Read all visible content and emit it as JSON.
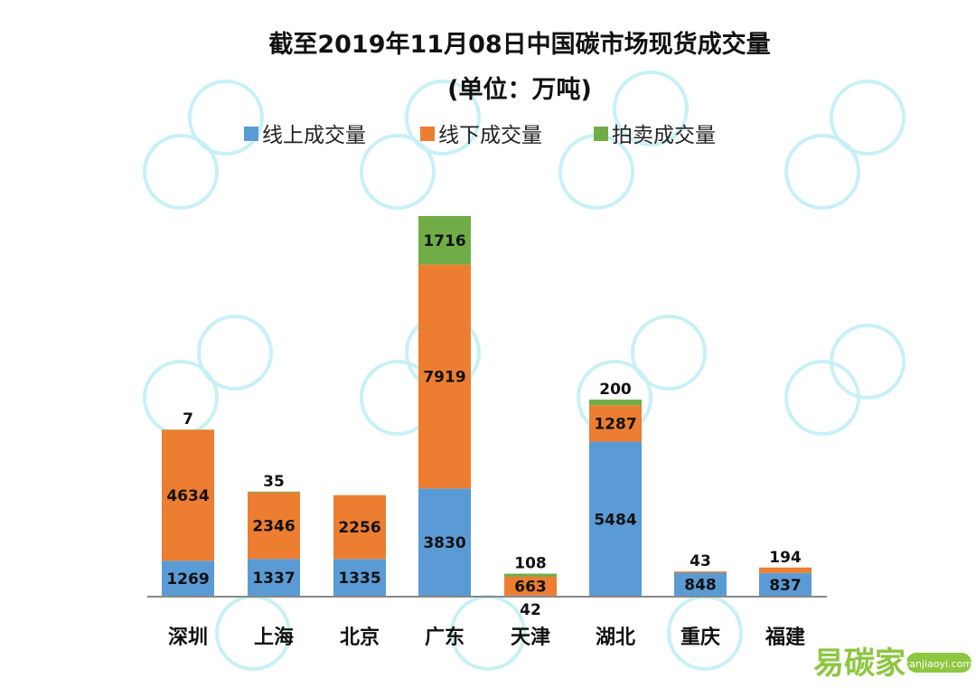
{
  "chart_data": {
    "type": "bar",
    "stacked": true,
    "title": "截至2019年11月08日中国碳市场现货成交量",
    "subtitle": "(单位：万吨)",
    "legend_position": "top",
    "grid": false,
    "categories": [
      "深圳",
      "上海",
      "北京",
      "广东",
      "天津",
      "湖北",
      "重庆",
      "福建"
    ],
    "series": [
      {
        "name": "线上成交量",
        "color": "#5B9BD5",
        "values": [
          1269,
          1337,
          1335,
          3830,
          42,
          5484,
          848,
          837
        ]
      },
      {
        "name": "线下成交量",
        "color": "#ED7D31",
        "values": [
          4634,
          2346,
          2256,
          7919,
          663,
          1287,
          43,
          194
        ]
      },
      {
        "name": "拍卖成交量",
        "color": "#70AD47",
        "values": [
          7,
          35,
          0,
          1716,
          108,
          200,
          0,
          0
        ]
      }
    ],
    "ylim": [
      0,
      13465
    ]
  },
  "logo": {
    "text": "易碳家",
    "domain": "tanjiaoyi.com",
    "color": "#8DC63F"
  }
}
